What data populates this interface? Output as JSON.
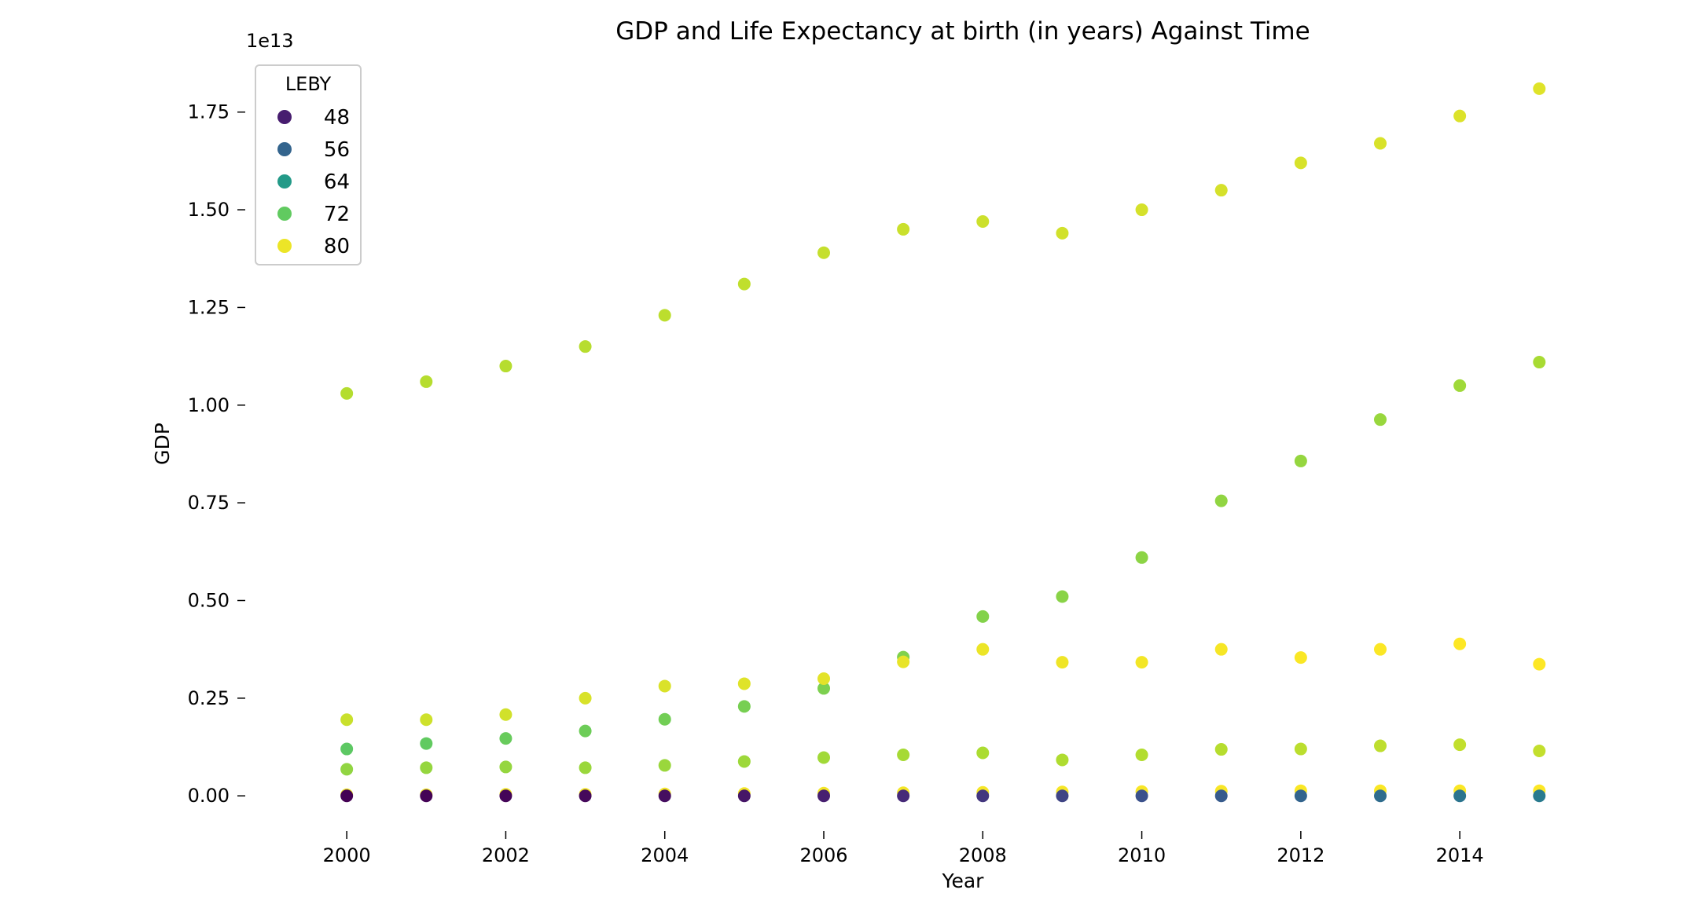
{
  "chart_data": {
    "type": "scatter",
    "title": "GDP and Life Expectancy at birth (in years) Against Time",
    "xlabel": "Year",
    "ylabel": "GDP",
    "y_offset_label": "1e13",
    "xlim": [
      1999.0,
      2016.5
    ],
    "ylim": [
      -0.09,
      1.87
    ],
    "y_units_multiplier": 10000000000000.0,
    "x_ticks": [
      2000,
      2002,
      2004,
      2006,
      2008,
      2010,
      2012,
      2014
    ],
    "y_ticks": [
      0.0,
      0.25,
      0.5,
      0.75,
      1.0,
      1.25,
      1.5,
      1.75
    ],
    "y_tick_labels": [
      "0.00",
      "0.25",
      "0.50",
      "0.75",
      "1.00",
      "1.25",
      "1.50",
      "1.75"
    ],
    "grid": false,
    "colorscale": "viridis",
    "color_range": [
      44.3,
      81.0
    ],
    "legend": {
      "title": "LEBY",
      "placement": "top-left",
      "entries": [
        {
          "label": "48",
          "value": 48
        },
        {
          "label": "56",
          "value": 56
        },
        {
          "label": "64",
          "value": 64
        },
        {
          "label": "72",
          "value": 72
        },
        {
          "label": "80",
          "value": 80
        }
      ]
    },
    "series": [
      {
        "x": [
          2000,
          2001,
          2002,
          2003,
          2004,
          2005,
          2006,
          2007,
          2008,
          2009,
          2010,
          2011,
          2012,
          2013,
          2014,
          2015
        ],
        "y": [
          1.03,
          1.06,
          1.1,
          1.15,
          1.23,
          1.31,
          1.39,
          1.45,
          1.47,
          1.44,
          1.5,
          1.55,
          1.62,
          1.67,
          1.74,
          1.81
        ],
        "leby": [
          76.8,
          76.9,
          76.9,
          77.0,
          77.3,
          77.5,
          77.8,
          78.1,
          78.2,
          78.5,
          78.7,
          78.7,
          78.8,
          78.9,
          79.1,
          79.3
        ]
      },
      {
        "x": [
          2000,
          2001,
          2002,
          2003,
          2004,
          2005,
          2006,
          2007,
          2008,
          2009,
          2010,
          2011,
          2012,
          2013,
          2014,
          2015
        ],
        "y": [
          0.12,
          0.134,
          0.147,
          0.166,
          0.196,
          0.229,
          0.275,
          0.355,
          0.459,
          0.51,
          0.61,
          0.755,
          0.857,
          0.963,
          1.05,
          1.11
        ],
        "leby": [
          71.7,
          72.0,
          72.4,
          72.7,
          73.0,
          73.3,
          73.6,
          73.8,
          74.0,
          74.3,
          74.5,
          74.8,
          75.0,
          75.2,
          75.6,
          76.1
        ]
      },
      {
        "x": [
          2000,
          2001,
          2002,
          2003,
          2004,
          2005,
          2006,
          2007,
          2008,
          2009,
          2010,
          2011,
          2012,
          2013,
          2014,
          2015
        ],
        "y": [
          0.195,
          0.195,
          0.208,
          0.25,
          0.281,
          0.287,
          0.3,
          0.343,
          0.375,
          0.342,
          0.342,
          0.375,
          0.354,
          0.375,
          0.389,
          0.337
        ],
        "leby": [
          78.0,
          78.3,
          78.5,
          78.9,
          79.0,
          79.3,
          79.5,
          79.8,
          80.0,
          80.2,
          80.4,
          80.6,
          80.8,
          80.9,
          81.0,
          81.0
        ]
      },
      {
        "x": [
          2000,
          2001,
          2002,
          2003,
          2004,
          2005,
          2006,
          2007,
          2008,
          2009,
          2010,
          2011,
          2012,
          2013,
          2014,
          2015
        ],
        "y": [
          0.068,
          0.072,
          0.074,
          0.072,
          0.078,
          0.088,
          0.098,
          0.105,
          0.11,
          0.092,
          0.105,
          0.119,
          0.12,
          0.128,
          0.131,
          0.115
        ],
        "leby": [
          74.8,
          75.0,
          75.0,
          75.3,
          75.3,
          75.5,
          75.7,
          76.0,
          76.3,
          76.5,
          76.7,
          76.9,
          77.2,
          77.4,
          77.6,
          77.7
        ]
      },
      {
        "x": [
          2000,
          2001,
          2002,
          2003,
          2004,
          2005,
          2006,
          2007,
          2008,
          2009,
          2010,
          2011,
          2012,
          2013,
          2014,
          2015
        ],
        "y": [
          0.003,
          0.003,
          0.004,
          0.004,
          0.005,
          0.006,
          0.007,
          0.008,
          0.009,
          0.01,
          0.011,
          0.012,
          0.013,
          0.013,
          0.013,
          0.013
        ],
        "leby": [
          80.0,
          80.1,
          80.2,
          80.3,
          80.4,
          80.4,
          80.5,
          80.5,
          80.6,
          80.6,
          80.7,
          80.7,
          80.8,
          80.8,
          80.9,
          81.0
        ]
      },
      {
        "x": [
          2000,
          2001,
          2002,
          2003,
          2004,
          2005,
          2006,
          2007,
          2008,
          2009,
          2010,
          2011,
          2012,
          2013,
          2014,
          2015
        ],
        "y": [
          0.0,
          0.0,
          0.0,
          0.0,
          0.0,
          0.0,
          0.0,
          0.0,
          0.0,
          0.0,
          0.0,
          0.0,
          0.0,
          0.0,
          0.0,
          0.0
        ],
        "leby": [
          44.3,
          44.6,
          44.8,
          45.3,
          46.0,
          47.0,
          48.2,
          49.5,
          50.7,
          52.1,
          53.4,
          54.8,
          56.0,
          57.2,
          58.3,
          59.2
        ]
      }
    ]
  }
}
